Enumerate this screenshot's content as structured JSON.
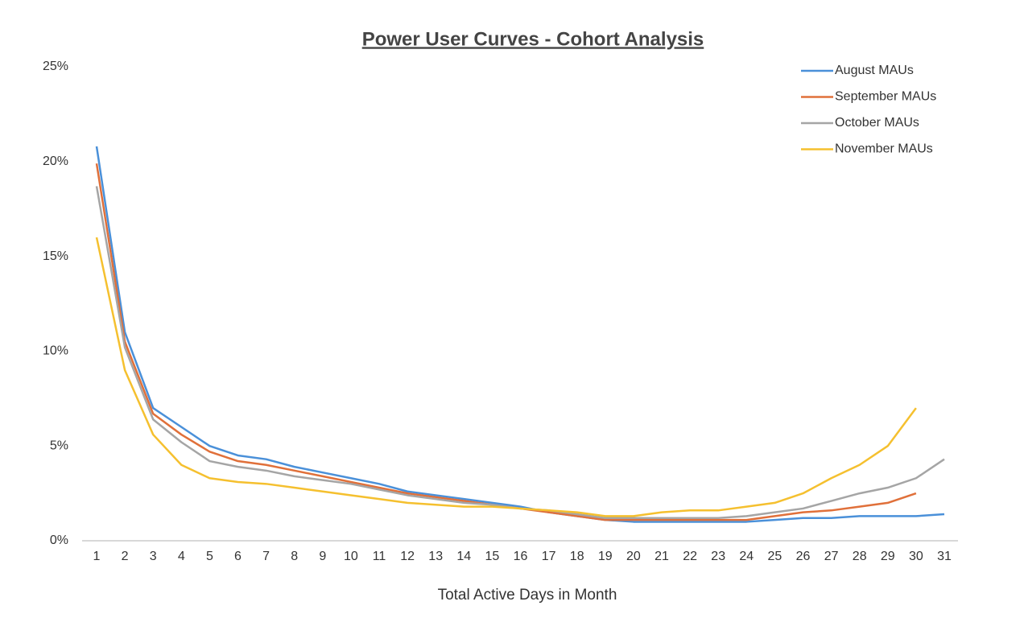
{
  "chart_data": {
    "type": "line",
    "title": "Power User Curves - Cohort Analysis",
    "x_label": "Total Active Days in Month",
    "x": [
      1,
      2,
      3,
      4,
      5,
      6,
      7,
      8,
      9,
      10,
      11,
      12,
      13,
      14,
      15,
      16,
      17,
      18,
      19,
      20,
      21,
      22,
      23,
      24,
      25,
      26,
      27,
      28,
      29,
      30,
      31
    ],
    "xlim": [
      1,
      31
    ],
    "ylim": [
      0,
      25
    ],
    "yticks": [
      {
        "value": 0,
        "label": "0%"
      },
      {
        "value": 5,
        "label": "5%"
      },
      {
        "value": 10,
        "label": "10%"
      },
      {
        "value": 15,
        "label": "15%"
      },
      {
        "value": 20,
        "label": "20%"
      },
      {
        "value": 25,
        "label": "25%"
      }
    ],
    "grid": false,
    "legend": "top-right",
    "series": [
      {
        "name": "August MAUs",
        "color": "#4a90d9",
        "values": [
          20.8,
          11,
          7,
          6,
          5,
          4.5,
          4.3,
          3.9,
          3.6,
          3.3,
          3,
          2.6,
          2.4,
          2.2,
          2,
          1.8,
          1.5,
          1.3,
          1.1,
          1.0,
          1.0,
          1.0,
          1.0,
          1.0,
          1.1,
          1.2,
          1.2,
          1.3,
          1.3,
          1.3,
          1.4
        ]
      },
      {
        "name": "September MAUs",
        "color": "#e0703a",
        "values": [
          19.9,
          10.5,
          6.7,
          5.6,
          4.7,
          4.2,
          4.0,
          3.7,
          3.4,
          3.1,
          2.8,
          2.5,
          2.3,
          2.1,
          1.9,
          1.7,
          1.5,
          1.3,
          1.1,
          1.1,
          1.1,
          1.1,
          1.1,
          1.1,
          1.3,
          1.5,
          1.6,
          1.8,
          2.0,
          2.5,
          null
        ]
      },
      {
        "name": "October MAUs",
        "color": "#a5a5a5",
        "values": [
          18.7,
          10.2,
          6.4,
          5.2,
          4.2,
          3.9,
          3.7,
          3.4,
          3.2,
          3.0,
          2.7,
          2.4,
          2.2,
          2.0,
          1.9,
          1.7,
          1.6,
          1.4,
          1.2,
          1.2,
          1.2,
          1.2,
          1.2,
          1.3,
          1.5,
          1.7,
          2.1,
          2.5,
          2.8,
          3.3,
          4.3
        ]
      },
      {
        "name": "November MAUs",
        "color": "#f5c02f",
        "values": [
          16.0,
          9.0,
          5.6,
          4.0,
          3.3,
          3.1,
          3.0,
          2.8,
          2.6,
          2.4,
          2.2,
          2.0,
          1.9,
          1.8,
          1.8,
          1.7,
          1.6,
          1.5,
          1.3,
          1.3,
          1.5,
          1.6,
          1.6,
          1.8,
          2.0,
          2.5,
          3.3,
          4.0,
          5.0,
          7.0,
          null
        ]
      }
    ]
  }
}
